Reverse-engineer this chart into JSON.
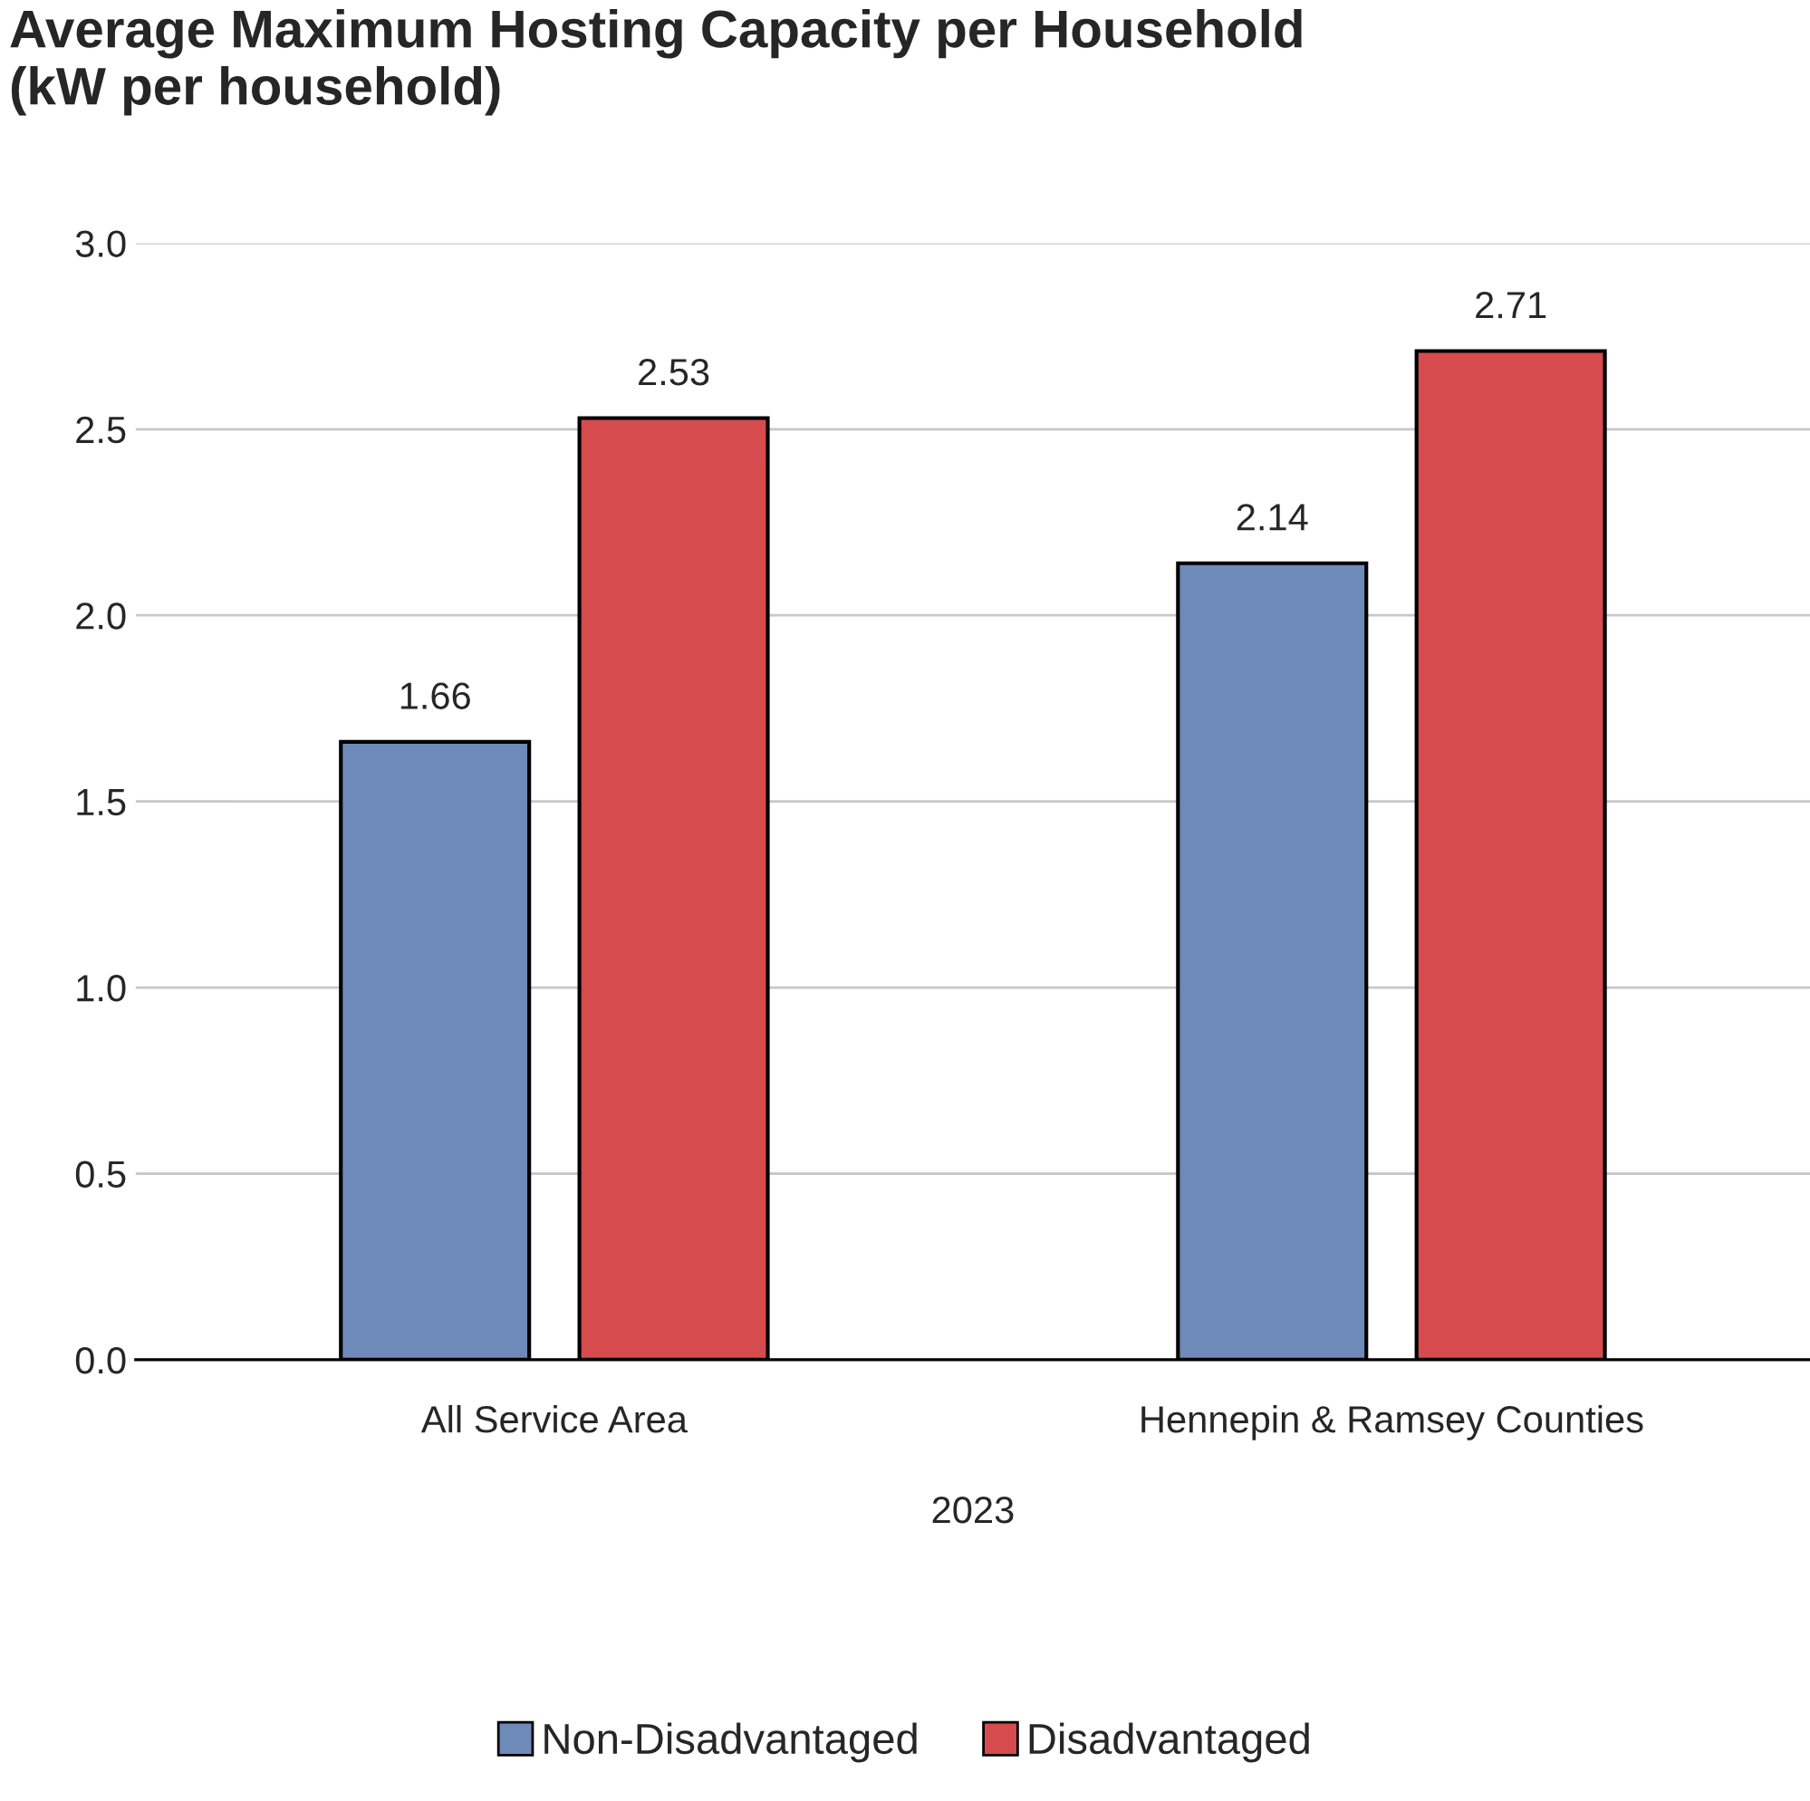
{
  "chart_data": {
    "type": "bar",
    "title": "Average Maximum Hosting Capacity per Household\n(kW per household)",
    "xlabel": "2023",
    "categories": [
      "All Service Area",
      "Hennepin & Ramsey Counties"
    ],
    "series": [
      {
        "name": "Non-Disadvantaged",
        "color": "#6d8ab8",
        "values": [
          1.66,
          2.14
        ]
      },
      {
        "name": "Disadvantaged",
        "color": "#d64b4d",
        "values": [
          2.53,
          2.71
        ]
      }
    ],
    "ylim": [
      0,
      3
    ],
    "yticks": [
      {
        "value": 0,
        "label": "0.0"
      },
      {
        "value": 0.5,
        "label": "0.5"
      },
      {
        "value": 1,
        "label": "1.0"
      },
      {
        "value": 1.5,
        "label": "1.5"
      },
      {
        "value": 2,
        "label": "2.0"
      },
      {
        "value": 2.5,
        "label": "2.5"
      },
      {
        "value": 3,
        "label": "3.0"
      }
    ],
    "grid": "y",
    "legend": "bottom",
    "data_labels": true
  }
}
